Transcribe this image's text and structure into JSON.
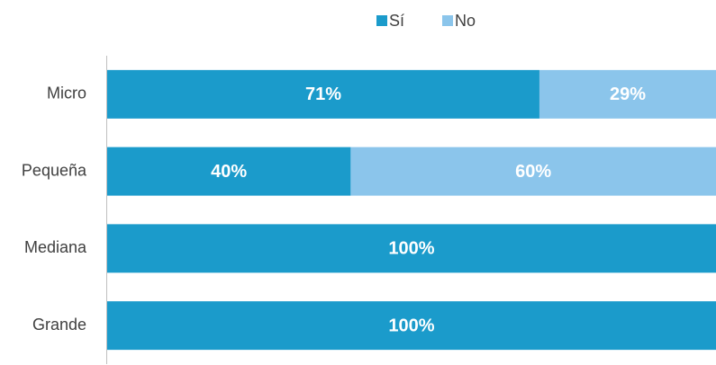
{
  "chart_data": {
    "type": "stacked-bar-horizontal",
    "categories": [
      "Micro",
      "Pequeña",
      "Mediana",
      "Grande"
    ],
    "series": [
      {
        "name": "Sí",
        "color": "#1b9bcb",
        "values": [
          71,
          40,
          100,
          100
        ],
        "value_labels": [
          "71%",
          "40%",
          "100%",
          "100%"
        ]
      },
      {
        "name": "No",
        "color": "#8bc5eb",
        "values": [
          29,
          60,
          0,
          0
        ],
        "value_labels": [
          "29%",
          "60%",
          null,
          null
        ]
      }
    ],
    "legend": "top"
  }
}
